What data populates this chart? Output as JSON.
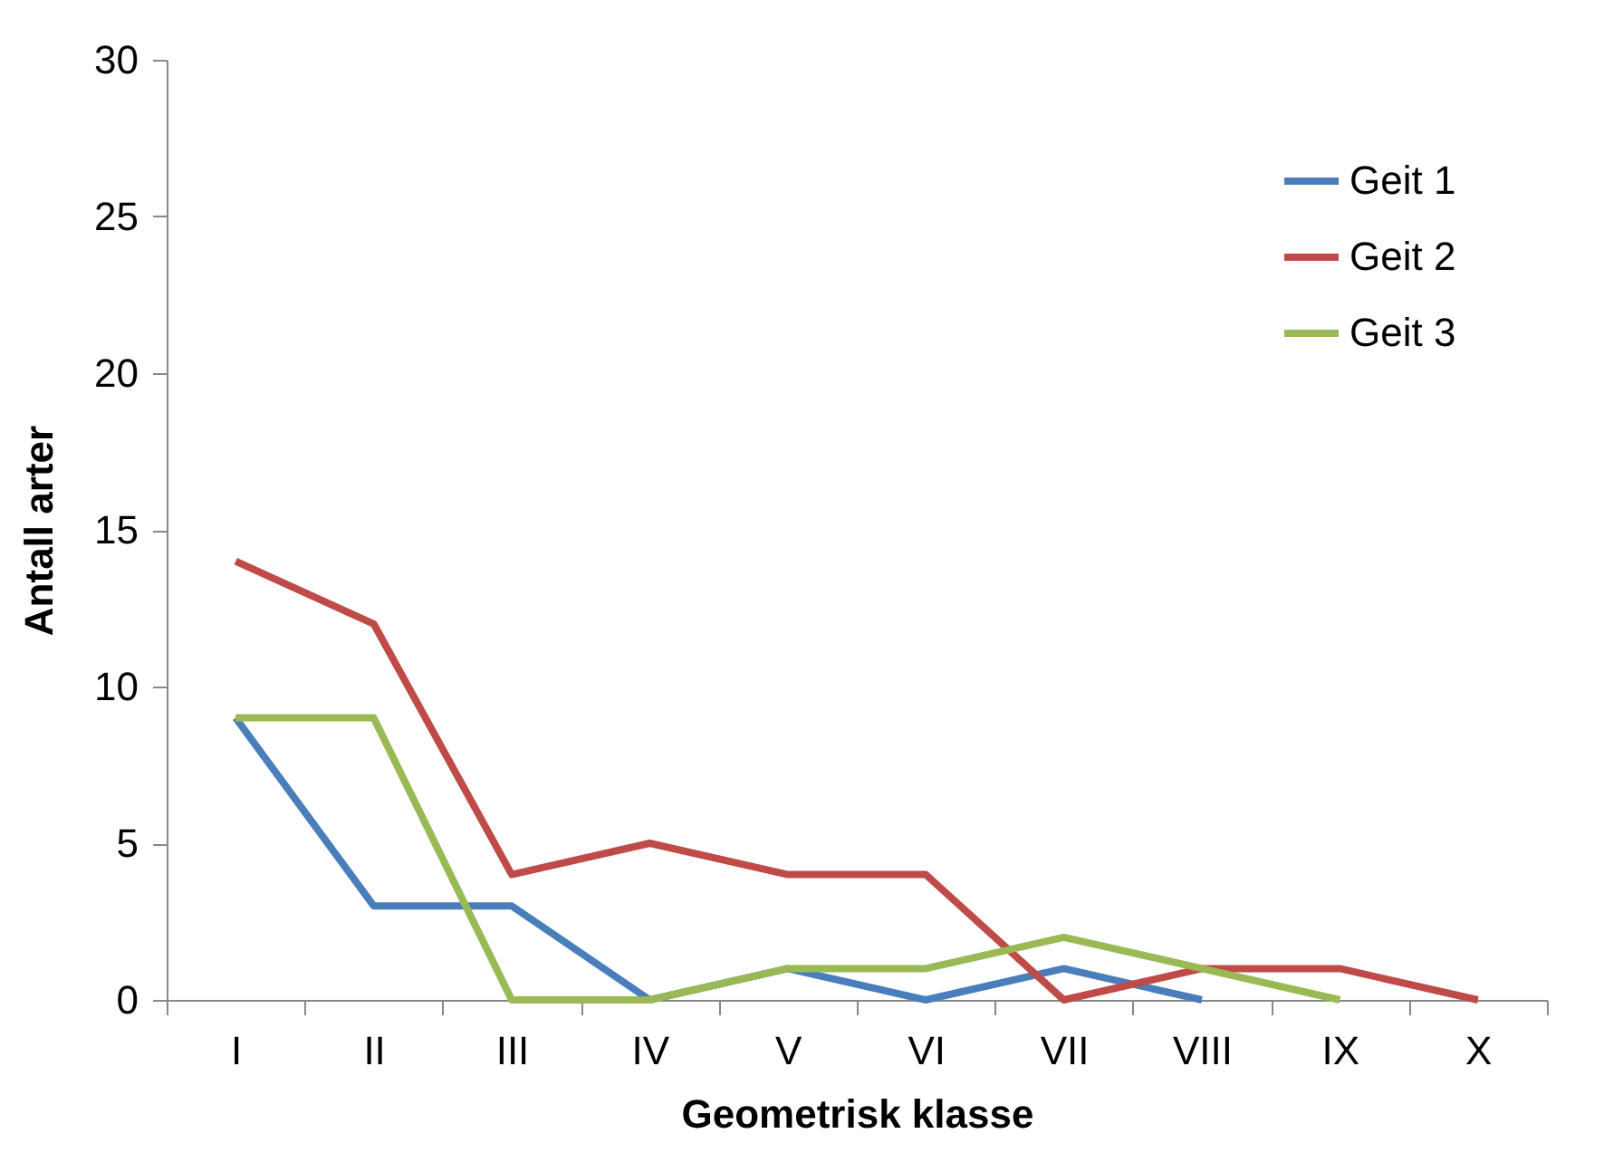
{
  "chart_data": {
    "type": "line",
    "xlabel": "Geometrisk klasse",
    "ylabel": "Antall arter",
    "categories": [
      "I",
      "II",
      "III",
      "IV",
      "V",
      "VI",
      "VII",
      "VIII",
      "IX",
      "X"
    ],
    "series": [
      {
        "name": "Geit 1",
        "color": "#4a7ebb",
        "values": [
          9,
          3,
          3,
          0,
          1,
          0,
          1,
          0,
          null,
          null
        ]
      },
      {
        "name": "Geit 2",
        "color": "#be4b48",
        "values": [
          14,
          12,
          4,
          5,
          4,
          4,
          0,
          1,
          1,
          0
        ]
      },
      {
        "name": "Geit 3",
        "color": "#98b954",
        "values": [
          9,
          9,
          0,
          0,
          1,
          1,
          2,
          1,
          0,
          null
        ]
      }
    ],
    "ylim": [
      0,
      30
    ],
    "yticks": [
      0,
      5,
      10,
      15,
      20,
      25,
      30
    ],
    "grid": false,
    "legend": "top right",
    "marker": "none",
    "line_style": "solid"
  }
}
